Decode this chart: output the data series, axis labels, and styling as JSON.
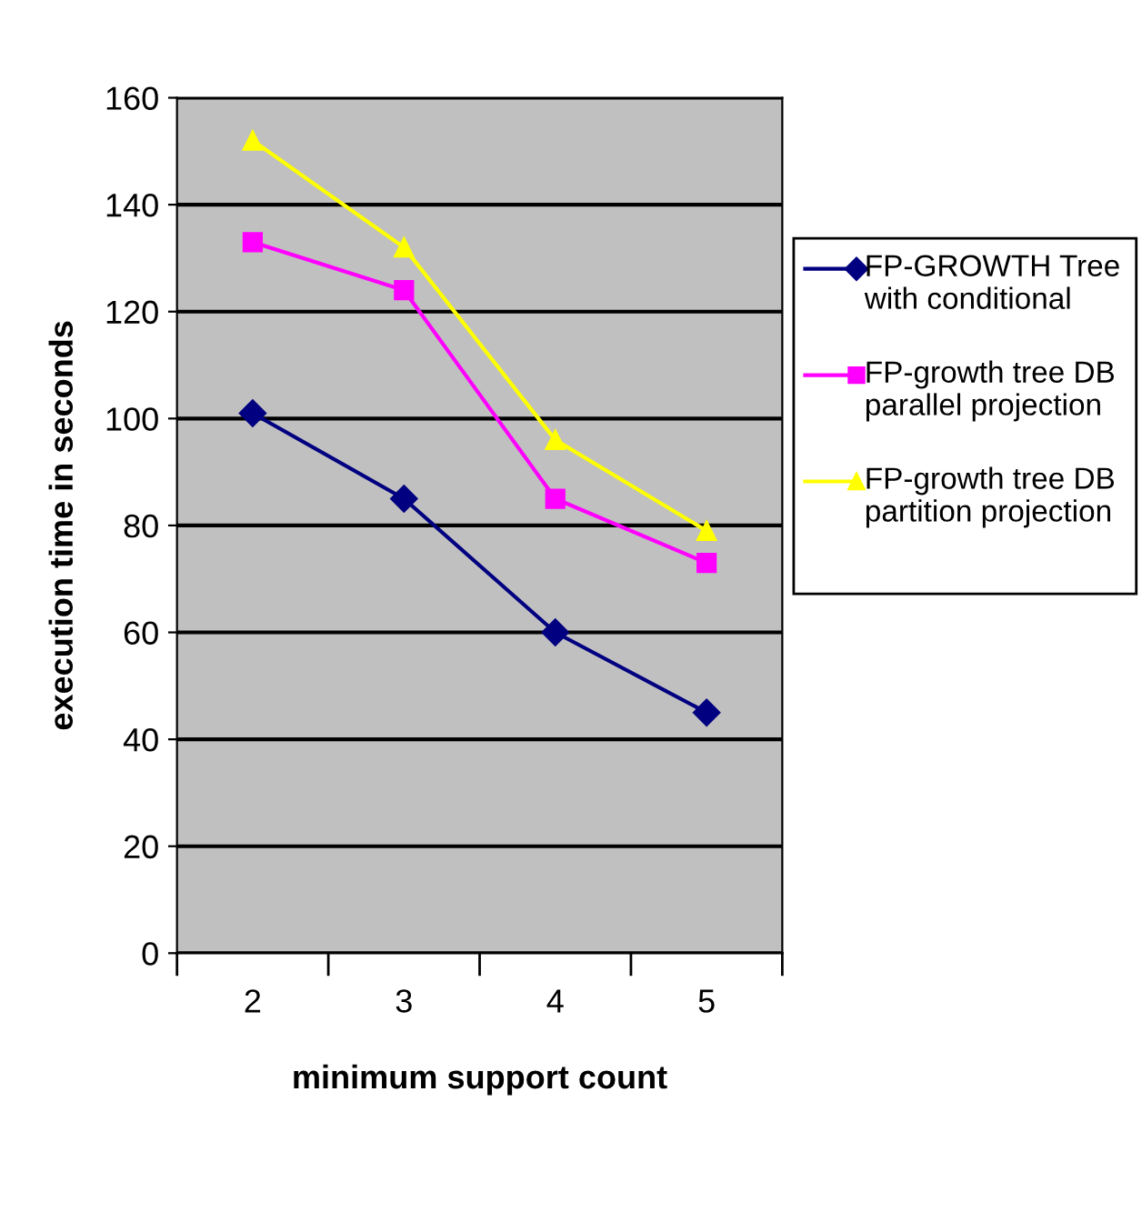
{
  "chart_data": {
    "type": "line",
    "xlabel": "minimum support count",
    "ylabel": "execution time in seconds",
    "categories": [
      "2",
      "3",
      "4",
      "5"
    ],
    "series": [
      {
        "name": "FP-GROWTH Tree with conditional",
        "color": "#000080",
        "marker": "diamond",
        "values": [
          101,
          85,
          60,
          45
        ]
      },
      {
        "name": "FP-growth tree DB parallel projection",
        "color": "#ff00ff",
        "marker": "square",
        "values": [
          133,
          124,
          85,
          73
        ]
      },
      {
        "name": "FP-growth tree DB partition projection",
        "color": "#ffff00",
        "marker": "triangle",
        "values": [
          152,
          132,
          96,
          79
        ]
      }
    ],
    "ylim": [
      0,
      160
    ],
    "yticks": [
      0,
      20,
      40,
      60,
      80,
      100,
      120,
      140,
      160
    ],
    "grid": "y",
    "legend": "right",
    "line_style": "solid"
  }
}
